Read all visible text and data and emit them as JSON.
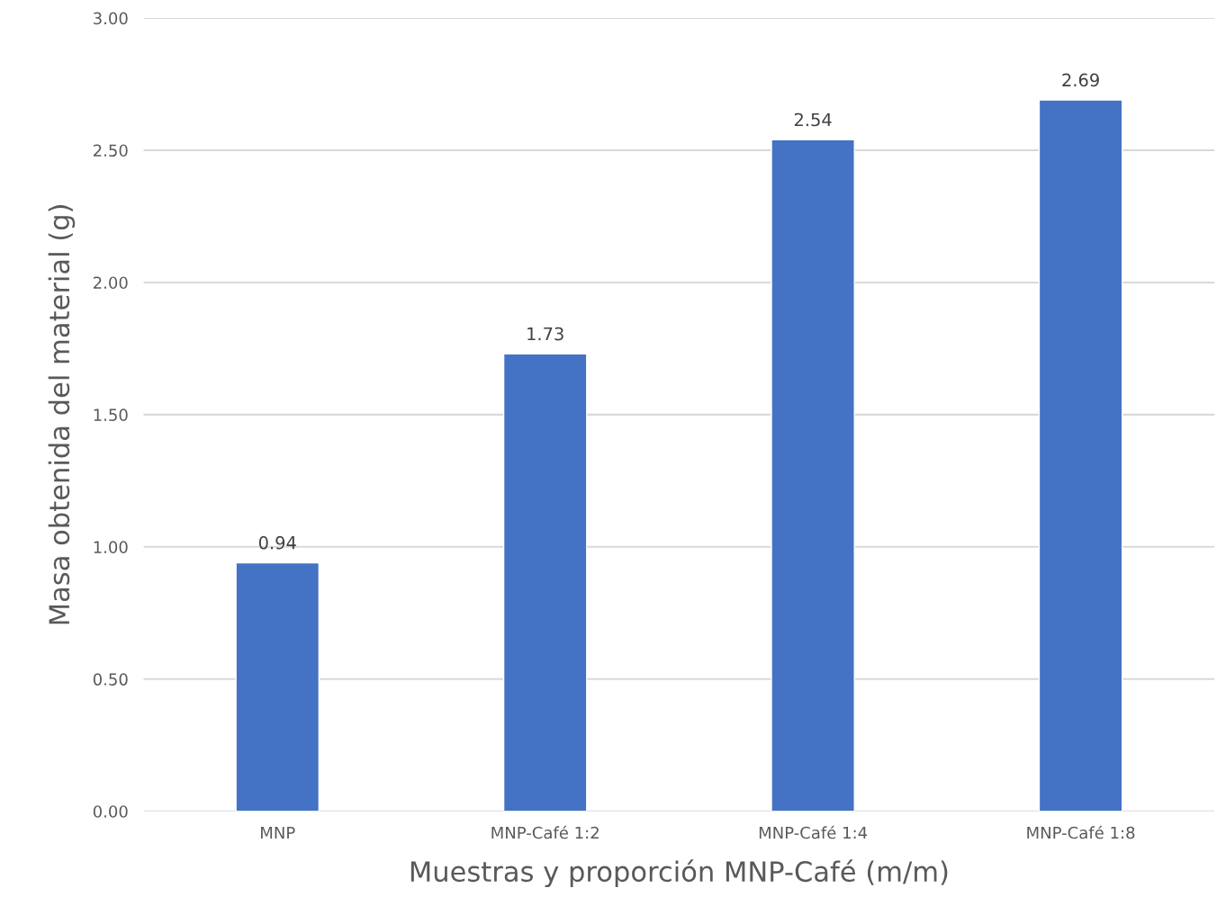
{
  "chart_data": {
    "type": "bar",
    "xlabel": "Muestras y proporción MNP-Café (m/m)",
    "ylabel": "Masa obtenida del material (g)",
    "categories": [
      "MNP",
      "MNP-Café 1:2",
      "MNP-Café 1:4",
      "MNP-Café 1:8"
    ],
    "values": [
      0.94,
      1.73,
      2.54,
      2.69
    ],
    "color": "#4472c4",
    "ylim": [
      0,
      3
    ],
    "yticks": [
      {
        "value": 0,
        "label": "0.00"
      },
      {
        "value": 0.5,
        "label": "0.50"
      },
      {
        "value": 1,
        "label": "1.00"
      },
      {
        "value": 1.5,
        "label": "1.50"
      },
      {
        "value": 2,
        "label": "2.00"
      },
      {
        "value": 2.5,
        "label": "2.50"
      },
      {
        "value": 3,
        "label": "3.00"
      }
    ],
    "grid": "y",
    "data_labels": true
  }
}
